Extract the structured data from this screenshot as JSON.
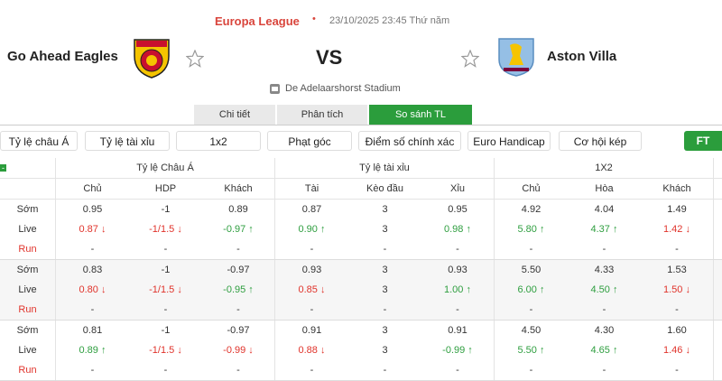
{
  "header": {
    "competition": "Europa League",
    "separator": "•",
    "datetime": "23/10/2025 23:45 Thứ năm"
  },
  "match": {
    "home": "Go Ahead Eagles",
    "vs": "VS",
    "away": "Aston Villa",
    "stadium": "De Adelaarshorst Stadium"
  },
  "tabs": [
    {
      "label": "Chi tiết",
      "active": false
    },
    {
      "label": "Phân tích",
      "active": false
    },
    {
      "label": "So sánh TL",
      "active": true
    }
  ],
  "filters": [
    "Tỷ lệ châu Á",
    "Tỷ lệ tài xỉu",
    "1x2",
    "Phạt góc",
    "Điểm số chính xác",
    "Euro Handicap",
    "Cơ hội kép"
  ],
  "period": "FT",
  "table": {
    "collapse": "-",
    "groups": [
      "Tỷ lệ Châu Á",
      "Tỷ lệ tài xỉu",
      "1X2"
    ],
    "columns": [
      "Chủ",
      "HDP",
      "Khách",
      "Tài",
      "Kèo đầu",
      "Xỉu",
      "Chủ",
      "Hòa",
      "Khách"
    ],
    "blocks": [
      {
        "rows": [
          {
            "label": "Sớm",
            "cells": [
              "0.95",
              "-1",
              "0.89",
              "0.87",
              "3",
              "0.95",
              "4.92",
              "4.04",
              "1.49"
            ]
          },
          {
            "label": "Live",
            "cells": [
              {
                "text": "0.87",
                "trend": "down"
              },
              {
                "text": "-1/1.5",
                "trend": "down"
              },
              {
                "text": "-0.97",
                "trend": "up"
              },
              {
                "text": "0.90",
                "trend": "up"
              },
              "3",
              {
                "text": "0.98",
                "trend": "up"
              },
              {
                "text": "5.80",
                "trend": "up"
              },
              {
                "text": "4.37",
                "trend": "up"
              },
              {
                "text": "1.42",
                "trend": "down"
              }
            ]
          },
          {
            "label": "Run",
            "cells": [
              "-",
              "-",
              "-",
              "-",
              "-",
              "-",
              "-",
              "-",
              "-"
            ]
          }
        ]
      },
      {
        "rows": [
          {
            "label": "Sớm",
            "cells": [
              "0.83",
              "-1",
              "-0.97",
              "0.93",
              "3",
              "0.93",
              "5.50",
              "4.33",
              "1.53"
            ]
          },
          {
            "label": "Live",
            "cells": [
              {
                "text": "0.80",
                "trend": "down"
              },
              {
                "text": "-1/1.5",
                "trend": "down"
              },
              {
                "text": "-0.95",
                "trend": "up"
              },
              {
                "text": "0.85",
                "trend": "down"
              },
              "3",
              {
                "text": "1.00",
                "trend": "up"
              },
              {
                "text": "6.00",
                "trend": "up"
              },
              {
                "text": "4.50",
                "trend": "up"
              },
              {
                "text": "1.50",
                "trend": "down"
              }
            ]
          },
          {
            "label": "Run",
            "cells": [
              "-",
              "-",
              "-",
              "-",
              "-",
              "-",
              "-",
              "-",
              "-"
            ]
          }
        ]
      },
      {
        "rows": [
          {
            "label": "Sớm",
            "cells": [
              "0.81",
              "-1",
              "-0.97",
              "0.91",
              "3",
              "0.91",
              "4.50",
              "4.30",
              "1.60"
            ]
          },
          {
            "label": "Live",
            "cells": [
              {
                "text": "0.89",
                "trend": "up"
              },
              {
                "text": "-1/1.5",
                "trend": "down"
              },
              {
                "text": "-0.99",
                "trend": "down"
              },
              {
                "text": "0.88",
                "trend": "down"
              },
              "3",
              {
                "text": "-0.99",
                "trend": "up"
              },
              {
                "text": "5.50",
                "trend": "up"
              },
              {
                "text": "4.65",
                "trend": "up"
              },
              {
                "text": "1.46",
                "trend": "down"
              }
            ]
          },
          {
            "label": "Run",
            "cells": [
              "-",
              "-",
              "-",
              "-",
              "-",
              "-",
              "-",
              "-",
              "-"
            ]
          }
        ]
      }
    ]
  }
}
